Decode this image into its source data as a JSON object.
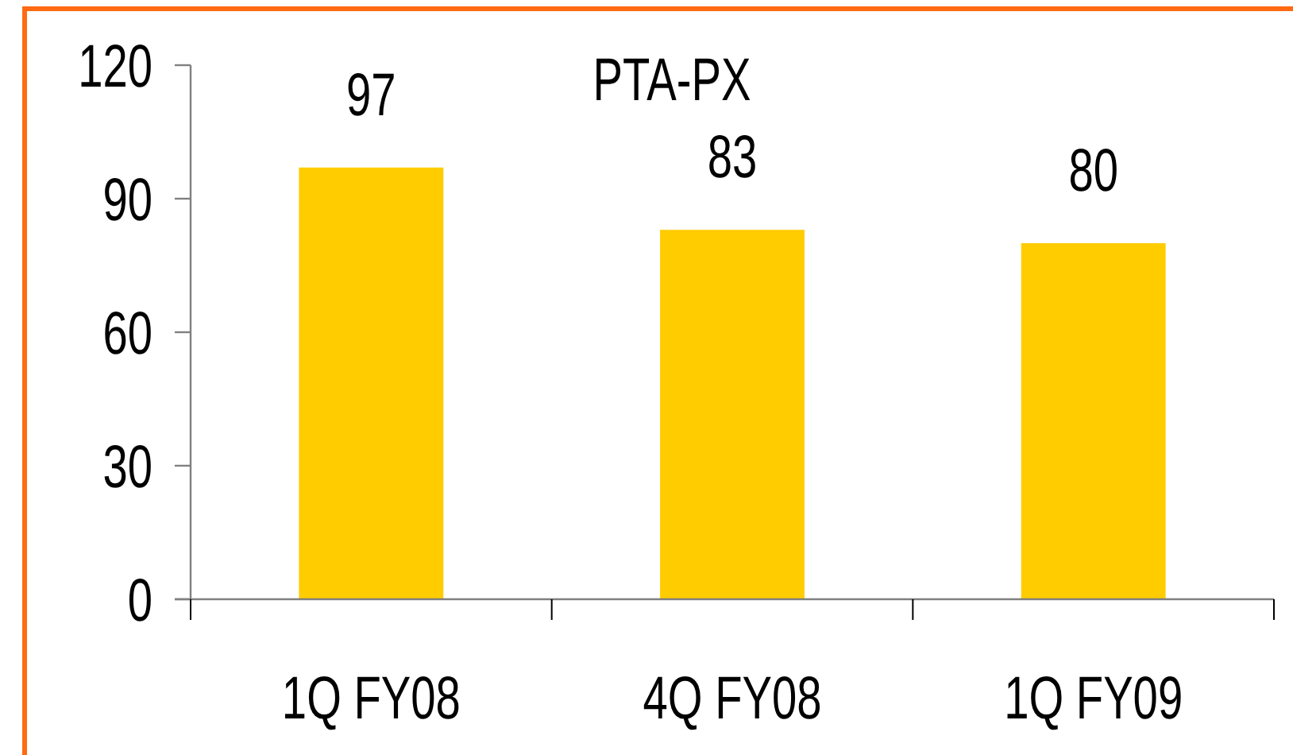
{
  "chart_data": {
    "type": "bar",
    "title": "PTA-PX",
    "categories": [
      "1Q FY08",
      "4Q FY08",
      "1Q FY09"
    ],
    "values": [
      97,
      83,
      80
    ],
    "color": "#ffcc00",
    "ylim": [
      0,
      120
    ],
    "yticks": [
      0,
      30,
      60,
      90,
      120
    ],
    "data_labels": true
  }
}
